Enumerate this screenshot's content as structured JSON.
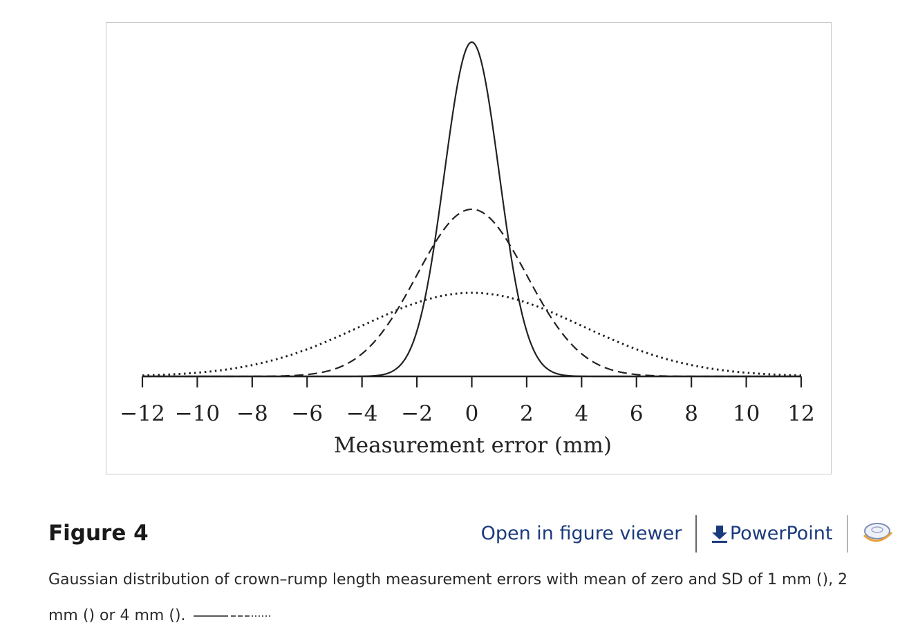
{
  "chart_data": {
    "type": "line",
    "title": "",
    "xlabel": "Measurement error (mm)",
    "ylabel": "",
    "xlim": [
      -12,
      12
    ],
    "x_ticks": [
      -12,
      -10,
      -8,
      -6,
      -4,
      -2,
      0,
      2,
      4,
      6,
      8,
      10,
      12
    ],
    "x_tick_labels": [
      "−12",
      "−10",
      "−8",
      "−6",
      "−4",
      "−2",
      "0",
      "2",
      "4",
      "6",
      "8",
      "10",
      "12"
    ],
    "grid": false,
    "legend": "none",
    "series": [
      {
        "distribution": "gaussian",
        "mean": 0,
        "sd": 1,
        "line_style": "solid"
      },
      {
        "distribution": "gaussian",
        "mean": 0,
        "sd": 2,
        "line_style": "dashed"
      },
      {
        "distribution": "gaussian",
        "mean": 0,
        "sd": 4,
        "line_style": "dotted"
      }
    ]
  },
  "figure": {
    "label": "Figure 4",
    "caption": "Gaussian distribution of crown–rump length measurement errors with mean of zero and SD of 1 mm (), 2 mm () or 4 mm ()."
  },
  "actions": {
    "open_viewer": "Open in figure viewer",
    "powerpoint": "PowerPoint"
  },
  "colors": {
    "link": "#1a3a7c",
    "curve": "#222222",
    "frame": "#c9c9c9"
  },
  "icons": {
    "download": "download-icon",
    "citation": "citation-icon"
  }
}
